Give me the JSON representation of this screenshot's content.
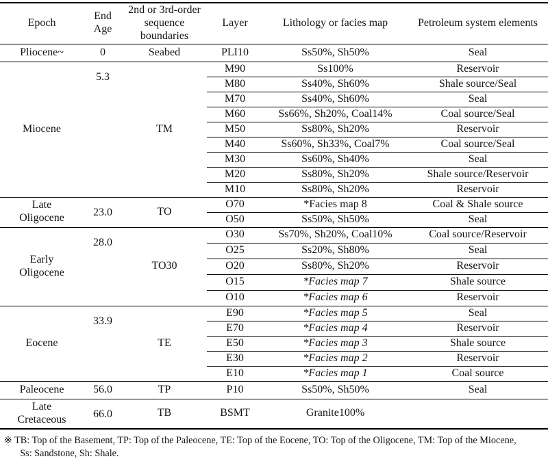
{
  "colors": {
    "background": "#ffffff",
    "text": "#141414",
    "line": "#000000"
  },
  "table": {
    "headers": [
      "Epoch",
      "End\nAge",
      "2nd or 3rd-order\nsequence\nboundaries",
      "Layer",
      "Lithology or facies map",
      "Petroleum system elements"
    ],
    "sections": [
      {
        "epoch_lines": [
          "Pliocene~"
        ],
        "end_age": "0",
        "boundary": "Seabed",
        "rows": [
          {
            "layer": "PLI10",
            "lithology": "Ss50%, Sh50%",
            "petroleum": "Seal"
          }
        ]
      },
      {
        "epoch_lines": [
          "Miocene"
        ],
        "end_age": "5.3",
        "boundary": "TM",
        "rows": [
          {
            "layer": "M90",
            "lithology": "Ss100%",
            "petroleum": "Reservoir"
          },
          {
            "layer": "M80",
            "lithology": "Ss40%, Sh60%",
            "petroleum": "Shale source/Seal"
          },
          {
            "layer": "M70",
            "lithology": "Ss40%, Sh60%",
            "petroleum": "Seal"
          },
          {
            "layer": "M60",
            "lithology": "Ss66%, Sh20%, Coal14%",
            "petroleum": "Coal source/Seal"
          },
          {
            "layer": "M50",
            "lithology": "Ss80%, Sh20%",
            "petroleum": "Reservoir"
          },
          {
            "layer": "M40",
            "lithology": "Ss60%, Sh33%, Coal7%",
            "petroleum": "Coal source/Seal"
          },
          {
            "layer": "M30",
            "lithology": "Ss60%, Sh40%",
            "petroleum": "Seal"
          },
          {
            "layer": "M20",
            "lithology": "Ss80%, Sh20%",
            "petroleum": "Shale source/Reservoir"
          },
          {
            "layer": "M10",
            "lithology": "Ss80%, Sh20%",
            "petroleum": "Reservoir"
          }
        ]
      },
      {
        "epoch_lines": [
          "Late",
          "Oligocene"
        ],
        "end_age": "23.0",
        "boundary": "TO",
        "rows": [
          {
            "layer": "O70",
            "lithology": "*Facies map 8",
            "petroleum": "Coal & Shale source"
          },
          {
            "layer": "O50",
            "lithology": "Ss50%, Sh50%",
            "petroleum": "Seal"
          }
        ]
      },
      {
        "epoch_lines": [
          "Early",
          "Oligocene"
        ],
        "end_age": "28.0",
        "boundary": "TO30",
        "rows": [
          {
            "layer": "O30",
            "lithology": "Ss70%, Sh20%, Coal10%",
            "petroleum": "Coal source/Reservoir"
          },
          {
            "layer": "O25",
            "lithology": "Ss20%, Sh80%",
            "petroleum": "Seal"
          },
          {
            "layer": "O20",
            "lithology": "Ss80%, Sh20%",
            "petroleum": "Reservoir"
          },
          {
            "layer": "O15",
            "lithology": "*Facies map 7",
            "italic": true,
            "petroleum": "Shale source"
          },
          {
            "layer": "O10",
            "lithology": "*Facies map 6",
            "italic": true,
            "petroleum": "Reservoir"
          }
        ]
      },
      {
        "epoch_lines": [
          "Eocene"
        ],
        "end_age": "33.9",
        "boundary": "TE",
        "rows": [
          {
            "layer": "E90",
            "lithology": "*Facies map 5",
            "italic": true,
            "petroleum": "Seal"
          },
          {
            "layer": "E70",
            "lithology": "*Facies map 4",
            "italic": true,
            "petroleum": "Reservoir"
          },
          {
            "layer": "E50",
            "lithology": "*Facies map 3",
            "italic": true,
            "petroleum": "Shale source"
          },
          {
            "layer": "E30",
            "lithology": "*Facies map 2",
            "italic": true,
            "petroleum": "Reservoir"
          },
          {
            "layer": "E10",
            "lithology": "*Facies map 1",
            "italic": true,
            "petroleum": "Coal source"
          }
        ]
      },
      {
        "epoch_lines": [
          "Paleocene"
        ],
        "end_age": "56.0",
        "boundary": "TP",
        "rows": [
          {
            "layer": "P10",
            "lithology": "Ss50%, Sh50%",
            "petroleum": "Seal"
          }
        ]
      },
      {
        "epoch_lines": [
          "Late",
          "Cretaceous"
        ],
        "end_age": "66.0",
        "boundary": "TB",
        "rows": [
          {
            "layer": "BSMT",
            "lithology": "Granite100%",
            "petroleum": ""
          }
        ]
      }
    ]
  },
  "footnote": {
    "line1": "※ TB: Top of the Basement, TP: Top of the Paleocene, TE: Top of the Eocene, TO: Top of the Oligocene, TM: Top of the Miocene,",
    "line2": "Ss: Sandstone, Sh: Shale."
  }
}
